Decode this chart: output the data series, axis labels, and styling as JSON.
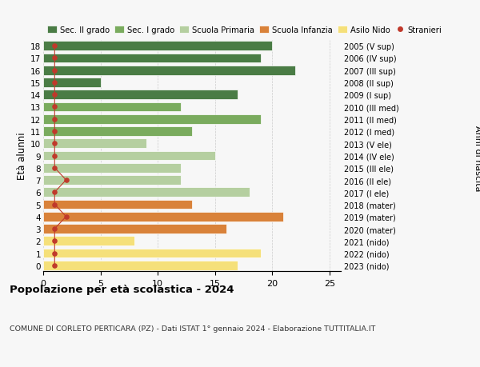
{
  "ages": [
    18,
    17,
    16,
    15,
    14,
    13,
    12,
    11,
    10,
    9,
    8,
    7,
    6,
    5,
    4,
    3,
    2,
    1,
    0
  ],
  "right_labels": [
    "2005 (V sup)",
    "2006 (IV sup)",
    "2007 (III sup)",
    "2008 (II sup)",
    "2009 (I sup)",
    "2010 (III med)",
    "2011 (II med)",
    "2012 (I med)",
    "2013 (V ele)",
    "2014 (IV ele)",
    "2015 (III ele)",
    "2016 (II ele)",
    "2017 (I ele)",
    "2018 (mater)",
    "2019 (mater)",
    "2020 (mater)",
    "2021 (nido)",
    "2022 (nido)",
    "2023 (nido)"
  ],
  "bar_values": [
    20,
    19,
    22,
    5,
    17,
    12,
    19,
    13,
    9,
    15,
    12,
    12,
    18,
    13,
    21,
    16,
    8,
    19,
    17
  ],
  "bar_colors": [
    "#4a7c45",
    "#4a7c45",
    "#4a7c45",
    "#4a7c45",
    "#4a7c45",
    "#7aab5e",
    "#7aab5e",
    "#7aab5e",
    "#b5cfa0",
    "#b5cfa0",
    "#b5cfa0",
    "#b5cfa0",
    "#b5cfa0",
    "#d9823a",
    "#d9823a",
    "#d9823a",
    "#f5e07a",
    "#f5e07a",
    "#f5e07a"
  ],
  "stranieri_values": [
    1,
    1,
    1,
    1,
    1,
    1,
    1,
    1,
    1,
    1,
    1,
    2,
    1,
    1,
    2,
    1,
    1,
    1,
    1
  ],
  "ylabel": "Età alunni",
  "ylabel_right": "Anni di nascita",
  "title": "Popolazione per età scolastica - 2024",
  "subtitle": "COMUNE DI CORLETO PERTICARA (PZ) - Dati ISTAT 1° gennaio 2024 - Elaborazione TUTTITALIA.IT",
  "xlim": [
    0,
    26
  ],
  "xticks": [
    0,
    5,
    10,
    15,
    20,
    25
  ],
  "legend_labels": [
    "Sec. II grado",
    "Sec. I grado",
    "Scuola Primaria",
    "Scuola Infanzia",
    "Asilo Nido",
    "Stranieri"
  ],
  "legend_colors": [
    "#4a7c45",
    "#7aab5e",
    "#b5cfa0",
    "#d9823a",
    "#f5e07a",
    "#c0392b"
  ],
  "dot_color": "#c0392b",
  "grid_color": "#cccccc",
  "bg_color": "#f7f7f7"
}
